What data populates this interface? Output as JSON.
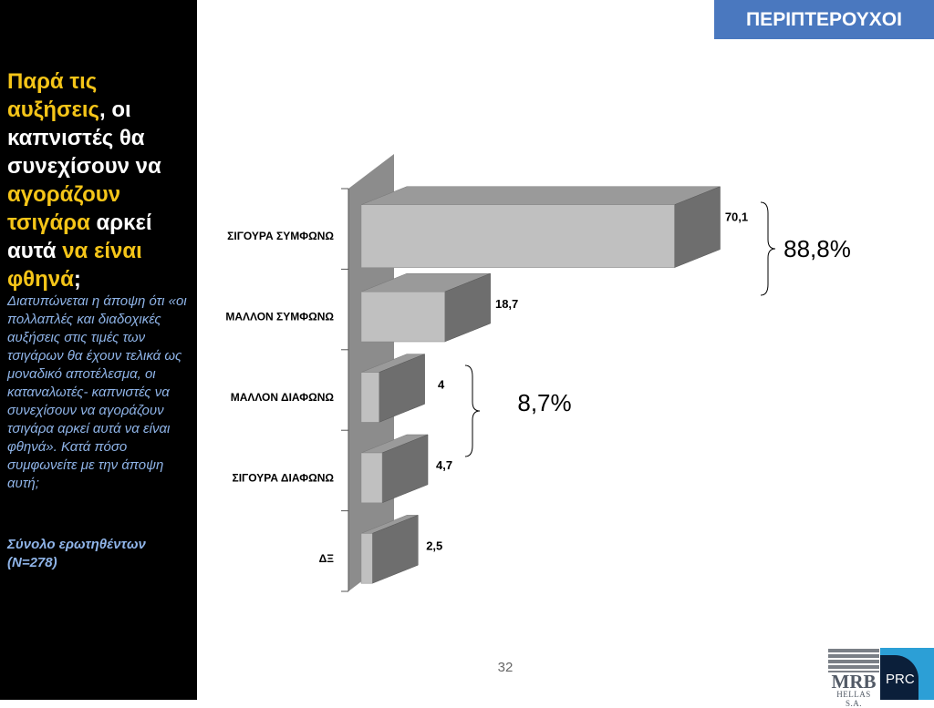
{
  "sidebar": {
    "headline_parts": [
      {
        "text": "Παρά τις αυξήσεις",
        "highlight": true
      },
      {
        "text": ", οι καπνιστές θα συνεχίσουν να ",
        "highlight": false
      },
      {
        "text": "αγοράζουν τσιγάρα",
        "highlight": true
      },
      {
        "text": " αρκεί αυτά ",
        "highlight": false
      },
      {
        "text": "να είναι φθηνά",
        "highlight": true
      },
      {
        "text": ";",
        "highlight": false
      }
    ],
    "question": "Διατυπώνεται η άποψη ότι «οι πολλαπλές και διαδοχικές αυξήσεις στις τιμές των τσιγάρων θα έχουν τελικά ως μοναδικό αποτέλεσμα,  οι καταναλωτές- καπνιστές να συνεχίσουν να αγοράζουν τσιγάρα αρκεί αυτά να είναι φθηνά». Κατά πόσο συμφωνείτε με την άποψη αυτή;",
    "base_note": "Σύνολο ερωτηθέντων (N=278)"
  },
  "section_tag": "ΠΕΡΙΠΤΕΡΟΥΧΟΙ",
  "page_number": "32",
  "logos": {
    "mrb": "MRB",
    "mrb_sub": "HELLAS S.A.",
    "prc": "PRC"
  },
  "colors": {
    "sidebar_bg": "#000000",
    "highlight": "#f5c518",
    "question": "#8fb4e8",
    "section_tag_bg": "#4a78bf",
    "bar_front": "#c0c0c0",
    "bar_top": "#9a9a9a",
    "bar_side": "#6e6e6e",
    "wall": "#8c8c8c"
  },
  "chart_data": {
    "type": "bar",
    "orientation": "horizontal",
    "style": "3d",
    "categories": [
      "ΣΙΓΟΥΡΑ ΣΥΜΦΩΝΩ",
      "ΜΑΛΛΟΝ ΣΥΜΦΩΝΩ",
      "ΜΑΛΛΟΝ ΔΙΑΦΩΝΩ",
      "ΣΙΓΟΥΡΑ ΔΙΑΦΩΝΩ",
      "ΔΞ"
    ],
    "values": [
      70.1,
      18.7,
      4,
      4.7,
      2.5
    ],
    "value_labels": [
      "70,1",
      "18,7",
      "4",
      "4,7",
      "2,5"
    ],
    "grid": false,
    "groups": [
      {
        "label": "88,8%",
        "categories": [
          "ΣΙΓΟΥΡΑ ΣΥΜΦΩΝΩ",
          "ΜΑΛΛΟΝ ΣΥΜΦΩΝΩ"
        ]
      },
      {
        "label": "8,7%",
        "categories": [
          "ΜΑΛΛΟΝ ΔΙΑΦΩΝΩ",
          "ΣΙΓΟΥΡΑ ΔΙΑΦΩΝΩ"
        ]
      }
    ]
  }
}
